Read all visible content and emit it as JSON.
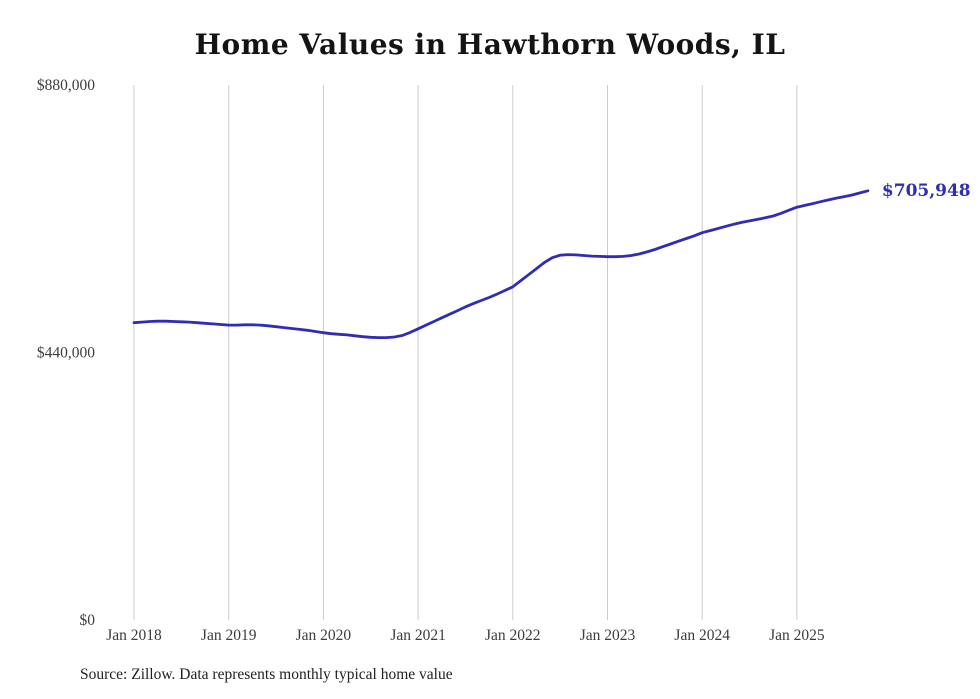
{
  "title": "Home Values in Hawthorn Woods, IL",
  "source_note": "Source: Zillow. Data represents monthly typical home value",
  "end_label": "$705,948",
  "colors": {
    "line": "#2f2db3",
    "grid": "#cccccc",
    "axis_text": "#3d3d3d",
    "title_text": "#141414"
  },
  "chart_data": {
    "type": "line",
    "title": "Home Values in Hawthorn Woods, IL",
    "ylabel": "",
    "xlabel": "",
    "ylim": [
      0,
      880000
    ],
    "grid": "vertical-only",
    "legend": "none",
    "frequency": "monthly",
    "x_start": "Jan 2018",
    "x_end": "Oct 2025",
    "x_tick_labels": [
      "Jan 2018",
      "Jan 2019",
      "Jan 2020",
      "Jan 2021",
      "Jan 2022",
      "Jan 2023",
      "Jan 2024",
      "Jan 2025"
    ],
    "y_ticks": [
      {
        "value": 0,
        "label": "$0"
      },
      {
        "value": 440000,
        "label": "$440,000"
      },
      {
        "value": 880000,
        "label": "$880,000"
      }
    ],
    "end_value": 705948,
    "series": [
      {
        "name": "Typical home value",
        "values": [
          489000,
          490000,
          491000,
          491500,
          491500,
          491000,
          490500,
          490000,
          489000,
          488000,
          487000,
          486000,
          485000,
          485000,
          485500,
          485500,
          485000,
          484000,
          482500,
          481000,
          479500,
          478000,
          476500,
          474500,
          472500,
          471000,
          470000,
          469000,
          467500,
          466000,
          465000,
          464500,
          464500,
          465500,
          468000,
          473000,
          479000,
          485000,
          491000,
          497000,
          503000,
          509000,
          515000,
          520500,
          525500,
          530500,
          536000,
          542000,
          548000,
          558000,
          568000,
          578000,
          588000,
          596000,
          600000,
          601000,
          600500,
          599500,
          598500,
          598000,
          597500,
          597500,
          598000,
          599500,
          602000,
          605500,
          609500,
          614000,
          618500,
          623000,
          627500,
          632000,
          637000,
          640500,
          644000,
          647500,
          651000,
          654000,
          656500,
          659000,
          661500,
          664500,
          669000,
          674000,
          679000,
          682000,
          685000,
          688000,
          691000,
          694000,
          696500,
          699000,
          702500,
          705948
        ]
      }
    ]
  }
}
